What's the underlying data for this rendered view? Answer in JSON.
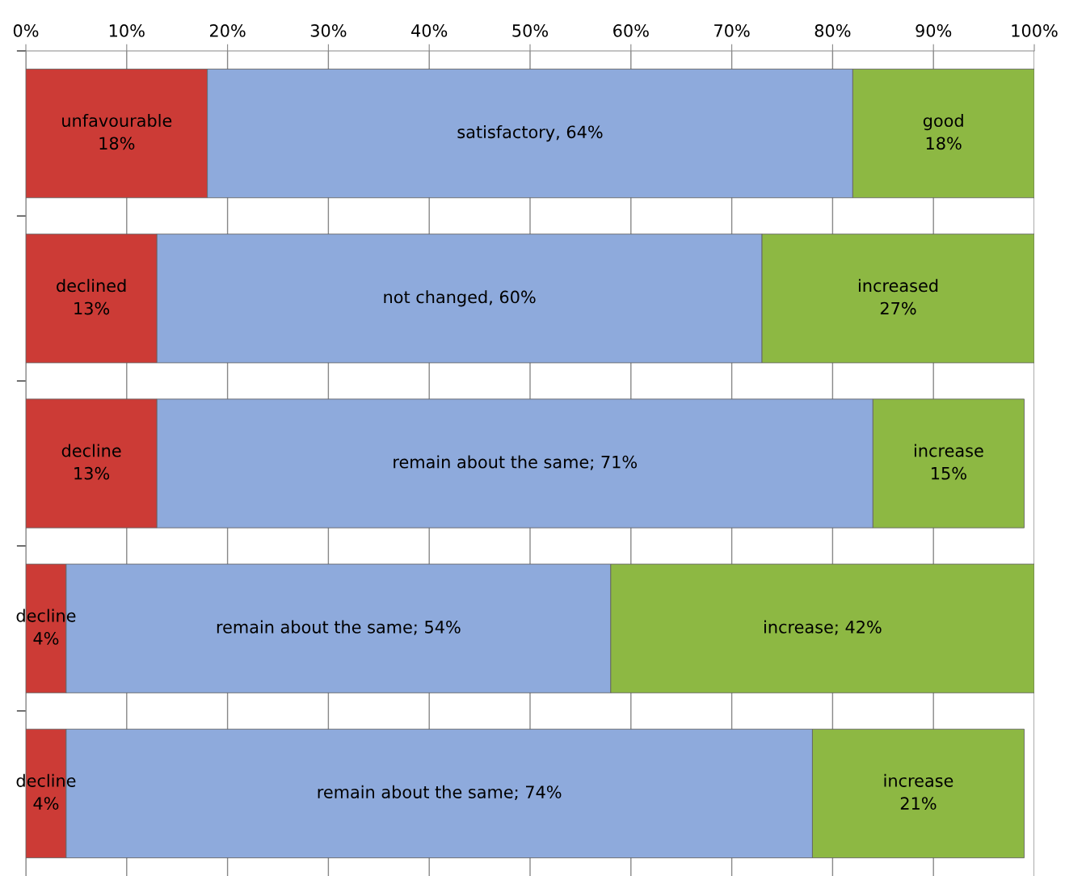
{
  "chart_data": {
    "type": "bar",
    "orientation": "horizontal",
    "stacked": true,
    "categories": [
      null,
      null,
      null,
      null,
      null
    ],
    "series": [
      {
        "color": "#cc3b36",
        "values": [
          18,
          13,
          13,
          4,
          4
        ],
        "value_labels": [
          "unfavourable\n18%",
          "declined\n13%",
          "decline\n13%",
          "decline\n4%",
          "decline\n4%"
        ]
      },
      {
        "color": "#8eaadc",
        "values": [
          64,
          60,
          71,
          54,
          74
        ],
        "value_labels": [
          "satisfactory, 64%",
          "not changed, 60%",
          "remain about the same; 71%",
          "remain about the same; 54%",
          "remain about the same; 74%"
        ]
      },
      {
        "color": "#8db843",
        "values": [
          18,
          27,
          15,
          42,
          21
        ],
        "value_labels": [
          "good\n18%",
          "increased\n27%",
          "increase\n15%",
          "increase; 42%",
          "increase\n21%"
        ]
      }
    ],
    "xlim": [
      0,
      100
    ],
    "xticks": [
      {
        "value": 0,
        "label": "0%"
      },
      {
        "value": 10,
        "label": "10%"
      },
      {
        "value": 20,
        "label": "20%"
      },
      {
        "value": 30,
        "label": "30%"
      },
      {
        "value": 40,
        "label": "40%"
      },
      {
        "value": 50,
        "label": "50%"
      },
      {
        "value": 60,
        "label": "60%"
      },
      {
        "value": 70,
        "label": "70%"
      },
      {
        "value": 80,
        "label": "80%"
      },
      {
        "value": 90,
        "label": "90%"
      },
      {
        "value": 100,
        "label": "100%"
      }
    ],
    "grid": "x",
    "legend": false
  }
}
